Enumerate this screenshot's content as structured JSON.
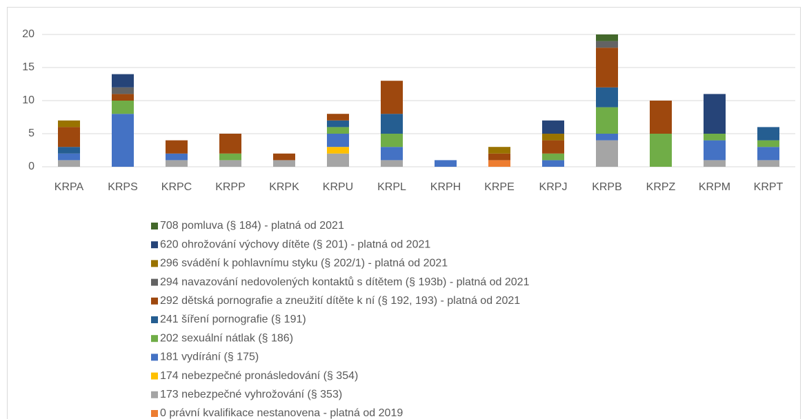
{
  "chart_data": {
    "type": "bar",
    "stacked": true,
    "categories": [
      "KRPA",
      "KRPS",
      "KRPC",
      "KRPP",
      "KRPK",
      "KRPU",
      "KRPL",
      "KRPH",
      "KRPE",
      "KRPJ",
      "KRPB",
      "KRPZ",
      "KRPM",
      "KRPT"
    ],
    "ylim": [
      0,
      20
    ],
    "yticks": [
      0,
      5,
      10,
      15,
      20
    ],
    "grid": true,
    "legend": "bottom",
    "series": [
      {
        "name": "0 právní kvalifikace nestanovena - platná od 2019",
        "color": "#ed7d31",
        "values": [
          0,
          0,
          0,
          0,
          0,
          0,
          0,
          0,
          1,
          0,
          0,
          0,
          0,
          0
        ]
      },
      {
        "name": "173 nebezpečné vyhrožování (§ 353)",
        "color": "#a5a5a5",
        "values": [
          1,
          0,
          1,
          1,
          1,
          2,
          1,
          0,
          0,
          0,
          4,
          0,
          1,
          1
        ]
      },
      {
        "name": "174 nebezpečné pronásledování (§ 354)",
        "color": "#ffc000",
        "values": [
          0,
          0,
          0,
          0,
          0,
          1,
          0,
          0,
          0,
          0,
          0,
          0,
          0,
          0
        ]
      },
      {
        "name": "181 vydírání (§ 175)",
        "color": "#4472c4",
        "values": [
          1,
          8,
          1,
          0,
          0,
          2,
          2,
          1,
          0,
          1,
          1,
          0,
          3,
          2
        ]
      },
      {
        "name": "202 sexuální nátlak (§ 186)",
        "color": "#70ad47",
        "values": [
          0,
          2,
          0,
          1,
          0,
          1,
          2,
          0,
          0,
          1,
          4,
          5,
          1,
          1
        ]
      },
      {
        "name": "241 šíření pornografie (§ 191)",
        "color": "#255e91",
        "values": [
          1,
          0,
          0,
          0,
          0,
          1,
          3,
          0,
          0,
          0,
          3,
          0,
          0,
          2
        ]
      },
      {
        "name": "292 dětská pornografie a zneužití dítěte k ní (§ 192, 193) - platná od 2021",
        "color": "#9e480e",
        "values": [
          3,
          1,
          2,
          3,
          1,
          1,
          5,
          0,
          1,
          2,
          6,
          5,
          0,
          0
        ]
      },
      {
        "name": "294 navazování nedovolených kontaktů s dítětem (§ 193b) - platná od 2021",
        "color": "#636363",
        "values": [
          0,
          1,
          0,
          0,
          0,
          0,
          0,
          0,
          0,
          0,
          1,
          0,
          0,
          0
        ]
      },
      {
        "name": "296 svádění k pohlavnímu styku (§ 202/1) - platná od 2021",
        "color": "#997300",
        "values": [
          1,
          0,
          0,
          0,
          0,
          0,
          0,
          0,
          1,
          1,
          0,
          0,
          0,
          0
        ]
      },
      {
        "name": "620 ohrožování výchovy dítěte (§ 201) - platná od 2021",
        "color": "#264478",
        "values": [
          0,
          2,
          0,
          0,
          0,
          0,
          0,
          0,
          0,
          2,
          0,
          0,
          6,
          0
        ]
      },
      {
        "name": "708 pomluva (§ 184) - platná od 2021",
        "color": "#43682b",
        "values": [
          0,
          0,
          0,
          0,
          0,
          0,
          0,
          0,
          0,
          0,
          1,
          0,
          0,
          0
        ]
      }
    ]
  }
}
